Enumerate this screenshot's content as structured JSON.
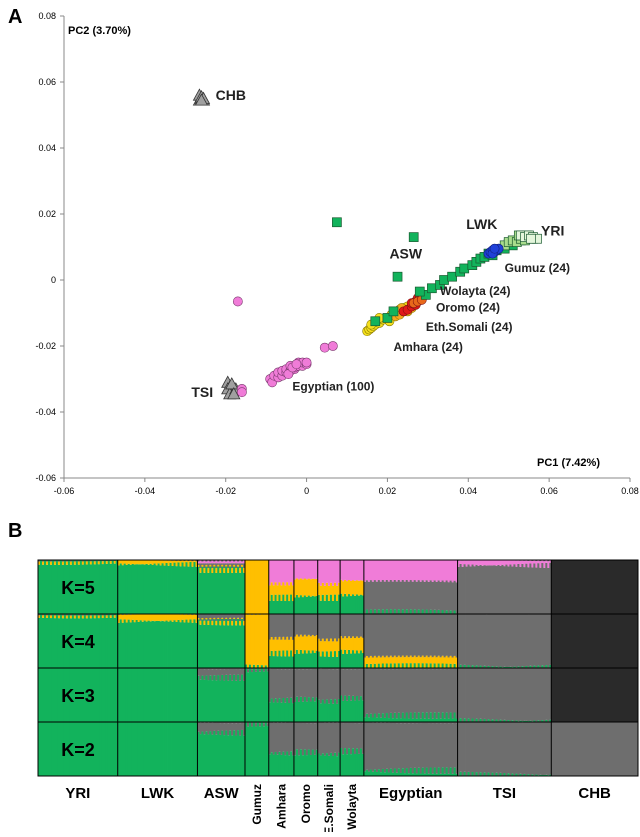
{
  "colors": {
    "green": "#12b35c",
    "lightgreen": "#a8dc8c",
    "blue": "#1f40d8",
    "red": "#e01818",
    "yellow": "#f5e01c",
    "orange": "#ffbf00",
    "pink": "#f07cd8",
    "gray": "#6e6e6e",
    "dark": "#2a2a2a",
    "triangle": "#a0a0a0"
  },
  "chart_data": [
    {
      "type": "scatter",
      "panel_label": "A",
      "xlabel": "PC1 (7.42%)",
      "ylabel": "PC2 (3.70%)",
      "xlim": [
        -0.06,
        0.08
      ],
      "ylim": [
        -0.06,
        0.08
      ],
      "xticks": [
        -0.06,
        -0.04,
        -0.02,
        0,
        0.02,
        0.04,
        0.06,
        0.08
      ],
      "yticks": [
        -0.06,
        -0.04,
        -0.02,
        0,
        0.02,
        0.04,
        0.06,
        0.08
      ],
      "xtick_labels": [
        "-0.06",
        "-0.04",
        "-0.02",
        "0",
        "0.02",
        "0.04",
        "0.06",
        "0.08"
      ],
      "ytick_labels": [
        "-0.06",
        "-0.04",
        "-0.02",
        "0",
        "0.02",
        "0.04",
        "0.06",
        "0.08"
      ],
      "grid": false,
      "series": [
        {
          "key": "chb",
          "shape": "triangle",
          "color": "#a0a0a0",
          "points": [
            [
              -0.0265,
              0.0545
            ],
            [
              -0.026,
              0.055
            ],
            [
              -0.0255,
              0.0545
            ],
            [
              -0.0265,
              0.056
            ],
            [
              -0.026,
              0.0555
            ],
            [
              -0.0255,
              0.055
            ],
            [
              -0.026,
              0.0545
            ]
          ]
        },
        {
          "key": "tsi",
          "shape": "triangle",
          "color": "#a0a0a0",
          "points": [
            [
              -0.0195,
              -0.031
            ],
            [
              -0.019,
              -0.0325
            ],
            [
              -0.0185,
              -0.034
            ],
            [
              -0.0195,
              -0.033
            ],
            [
              -0.018,
              -0.0335
            ],
            [
              -0.019,
              -0.0345
            ],
            [
              -0.0175,
              -0.033
            ],
            [
              -0.0185,
              -0.0315
            ],
            [
              -0.018,
              -0.0345
            ]
          ]
        },
        {
          "key": "egyptian",
          "shape": "circle",
          "color": "#f07cd8",
          "points": [
            [
              -0.017,
              -0.0065
            ],
            [
              -0.016,
              -0.033
            ],
            [
              -0.016,
              -0.034
            ],
            [
              -0.009,
              -0.03
            ],
            [
              -0.0085,
              -0.031
            ],
            [
              -0.008,
              -0.029
            ],
            [
              -0.007,
              -0.0295
            ],
            [
              -0.007,
              -0.028
            ],
            [
              -0.006,
              -0.029
            ],
            [
              -0.006,
              -0.0275
            ],
            [
              -0.005,
              -0.028
            ],
            [
              -0.005,
              -0.027
            ],
            [
              -0.004,
              -0.0275
            ],
            [
              -0.004,
              -0.026
            ],
            [
              -0.003,
              -0.027
            ],
            [
              -0.003,
              -0.0265
            ],
            [
              -0.002,
              -0.026
            ],
            [
              -0.002,
              -0.025
            ],
            [
              -0.001,
              -0.026
            ],
            [
              -0.001,
              -0.025
            ],
            [
              0.0,
              -0.0255
            ],
            [
              0.0,
              -0.025
            ],
            [
              -0.0045,
              -0.0285
            ],
            [
              -0.0035,
              -0.0265
            ],
            [
              -0.0025,
              -0.0255
            ],
            [
              0.0045,
              -0.0205
            ],
            [
              0.0065,
              -0.02
            ]
          ]
        },
        {
          "key": "amhara",
          "shape": "circle",
          "color": "#f5e01c",
          "points": [
            [
              0.015,
              -0.0155
            ],
            [
              0.0155,
              -0.015
            ],
            [
              0.016,
              -0.0145
            ],
            [
              0.0165,
              -0.014
            ],
            [
              0.017,
              -0.0135
            ],
            [
              0.018,
              -0.013
            ],
            [
              0.019,
              -0.012
            ],
            [
              0.02,
              -0.0115
            ],
            [
              0.0205,
              -0.0125
            ],
            [
              0.021,
              -0.0105
            ],
            [
              0.022,
              -0.0095
            ],
            [
              0.023,
              -0.009
            ],
            [
              0.024,
              -0.0085
            ],
            [
              0.025,
              -0.008
            ],
            [
              0.016,
              -0.0135
            ],
            [
              0.018,
              -0.0115
            ]
          ]
        },
        {
          "key": "oromo",
          "shape": "circle",
          "color": "#f7a81e",
          "points": [
            [
              0.022,
              -0.011
            ],
            [
              0.023,
              -0.0105
            ],
            [
              0.024,
              -0.0095
            ],
            [
              0.0245,
              -0.009
            ],
            [
              0.025,
              -0.0095
            ],
            [
              0.026,
              -0.0085
            ],
            [
              0.0235,
              -0.0085
            ]
          ]
        },
        {
          "key": "wolayta",
          "shape": "circle",
          "color": "#e01818",
          "points": [
            [
              0.024,
              -0.0095
            ],
            [
              0.025,
              -0.009
            ],
            [
              0.026,
              -0.008
            ],
            [
              0.027,
              -0.0065
            ],
            [
              0.0275,
              -0.0055
            ],
            [
              0.028,
              -0.005
            ],
            [
              0.026,
              -0.007
            ],
            [
              0.027,
              -0.0075
            ]
          ]
        },
        {
          "key": "somali",
          "shape": "circle",
          "color": "#e8681a",
          "points": [
            [
              0.0265,
              -0.007
            ],
            [
              0.0275,
              -0.0065
            ],
            [
              0.0285,
              -0.006
            ]
          ]
        },
        {
          "key": "asw",
          "shape": "square",
          "color": "#12b35c",
          "points": [
            [
              0.0075,
              0.0175
            ],
            [
              0.0265,
              0.013
            ],
            [
              0.0225,
              0.001
            ],
            [
              0.0295,
              -0.0045
            ],
            [
              0.02,
              -0.0115
            ],
            [
              0.017,
              -0.0125
            ],
            [
              0.0215,
              -0.0095
            ],
            [
              0.028,
              -0.0035
            ],
            [
              0.031,
              -0.0025
            ],
            [
              0.033,
              -0.0015
            ],
            [
              0.034,
              0.0
            ],
            [
              0.036,
              0.001
            ],
            [
              0.038,
              0.0025
            ],
            [
              0.039,
              0.0035
            ],
            [
              0.041,
              0.0045
            ],
            [
              0.042,
              0.0055
            ],
            [
              0.043,
              0.0065
            ],
            [
              0.044,
              0.007
            ],
            [
              0.045,
              0.008
            ],
            [
              0.046,
              0.0075
            ],
            [
              0.047,
              0.009
            ],
            [
              0.049,
              0.0095
            ],
            [
              0.05,
              0.011
            ],
            [
              0.051,
              0.0105
            ],
            [
              0.053,
              0.012
            ],
            [
              0.054,
              0.0125
            ],
            [
              0.055,
              0.013
            ]
          ]
        },
        {
          "key": "gumuz",
          "shape": "square",
          "color": "#a8dc8c",
          "points": [
            [
              0.049,
              0.0105
            ],
            [
              0.05,
              0.0115
            ],
            [
              0.051,
              0.012
            ],
            [
              0.052,
              0.0115
            ],
            [
              0.053,
              0.0125
            ],
            [
              0.054,
              0.012
            ],
            [
              0.055,
              0.013
            ],
            [
              0.056,
              0.0125
            ],
            [
              0.0525,
              0.0135
            ],
            [
              0.0545,
              0.0135
            ]
          ]
        },
        {
          "key": "yri",
          "shape": "square",
          "color": "#e4f6dc",
          "points": [
            [
              0.053,
              0.0135
            ],
            [
              0.054,
              0.013
            ],
            [
              0.055,
              0.0135
            ],
            [
              0.056,
              0.013
            ],
            [
              0.057,
              0.0125
            ],
            [
              0.0555,
              0.0125
            ]
          ]
        },
        {
          "key": "lwk",
          "shape": "circle",
          "color": "#1f40d8",
          "points": [
            [
              0.045,
              0.008
            ],
            [
              0.0455,
              0.0085
            ],
            [
              0.046,
              0.009
            ],
            [
              0.0465,
              0.0085
            ],
            [
              0.047,
              0.009
            ],
            [
              0.0475,
              0.0095
            ],
            [
              0.046,
              0.008
            ],
            [
              0.0465,
              0.0095
            ]
          ]
        }
      ],
      "annotations": [
        {
          "text": "CHB",
          "x": -0.0225,
          "y": 0.0545
        },
        {
          "text": "LWK",
          "x": 0.0395,
          "y": 0.0155
        },
        {
          "text": "YRI",
          "x": 0.058,
          "y": 0.0135
        },
        {
          "text": "ASW",
          "x": 0.0205,
          "y": 0.0065
        },
        {
          "text": "Gumuz (24)",
          "x": 0.049,
          "y": 0.0025
        },
        {
          "text": "Wolayta (24)",
          "x": 0.033,
          "y": -0.0045
        },
        {
          "text": "Oromo (24)",
          "x": 0.032,
          "y": -0.0095
        },
        {
          "text": "Eth.Somali (24)",
          "x": 0.0295,
          "y": -0.0155
        },
        {
          "text": "Amhara (24)",
          "x": 0.0215,
          "y": -0.0215
        },
        {
          "text": "TSI",
          "x": -0.0285,
          "y": -0.0355
        },
        {
          "text": "Egyptian (100)",
          "x": -0.0035,
          "y": -0.0335
        }
      ]
    },
    {
      "type": "bar",
      "stacked": true,
      "panel_label": "B",
      "rows": [
        "K=5",
        "K=4",
        "K=3",
        "K=2"
      ],
      "populations": [
        {
          "label": "YRI",
          "n": 57,
          "rotated": false
        },
        {
          "label": "LWK",
          "n": 57,
          "rotated": false
        },
        {
          "label": "ASW",
          "n": 34,
          "rotated": false
        },
        {
          "label": "Gumuz",
          "n": 17,
          "rotated": true
        },
        {
          "label": "Amhara",
          "n": 18,
          "rotated": true
        },
        {
          "label": "Oromo",
          "n": 17,
          "rotated": true
        },
        {
          "label": "E.Somali",
          "n": 16,
          "rotated": true
        },
        {
          "label": "Wolayta",
          "n": 17,
          "rotated": true
        },
        {
          "label": "Egyptian",
          "n": 67,
          "rotated": false
        },
        {
          "label": "TSI",
          "n": 67,
          "rotated": false
        },
        {
          "label": "CHB",
          "n": 62,
          "rotated": false
        }
      ],
      "components": [
        "green",
        "orange",
        "gray",
        "pink",
        "dark"
      ],
      "proportions": {
        "K=5": [
          {
            "green": 0.97,
            "orange": 0.03
          },
          {
            "green": 0.92,
            "orange": 0.08
          },
          {
            "green": 0.82,
            "orange": 0.06,
            "gray": 0.06,
            "pink": 0.06
          },
          {
            "orange": 1.0
          },
          {
            "green": 0.3,
            "orange": 0.26,
            "pink": 0.44
          },
          {
            "green": 0.33,
            "orange": 0.32,
            "pink": 0.35
          },
          {
            "green": 0.3,
            "orange": 0.25,
            "pink": 0.45
          },
          {
            "green": 0.35,
            "orange": 0.27,
            "pink": 0.38
          },
          {
            "green": 0.03,
            "gray": 0.57,
            "pink": 0.4
          },
          {
            "gray": 0.9,
            "pink": 0.1
          },
          {
            "dark": 1.0
          }
        ],
        "K=4": [
          {
            "green": 0.98,
            "orange": 0.02
          },
          {
            "green": 0.87,
            "orange": 0.13
          },
          {
            "green": 0.85,
            "orange": 0.05,
            "gray": 0.1
          },
          {
            "green": 0.03,
            "orange": 0.97
          },
          {
            "green": 0.27,
            "orange": 0.28,
            "gray": 0.45
          },
          {
            "green": 0.3,
            "orange": 0.3,
            "gray": 0.4
          },
          {
            "green": 0.26,
            "orange": 0.26,
            "gray": 0.48
          },
          {
            "green": 0.3,
            "orange": 0.27,
            "gray": 0.43
          },
          {
            "green": 0.03,
            "orange": 0.17,
            "gray": 0.8
          },
          {
            "green": 0.02,
            "gray": 0.98
          },
          {
            "dark": 1.0
          }
        ],
        "K=3": [
          {
            "green": 1.0
          },
          {
            "green": 1.0
          },
          {
            "green": 0.82,
            "gray": 0.18
          },
          {
            "green": 0.97,
            "gray": 0.03
          },
          {
            "green": 0.4,
            "gray": 0.6
          },
          {
            "green": 0.42,
            "gray": 0.58
          },
          {
            "green": 0.38,
            "gray": 0.62
          },
          {
            "green": 0.44,
            "gray": 0.56
          },
          {
            "green": 0.12,
            "gray": 0.88
          },
          {
            "green": 0.02,
            "gray": 0.98
          },
          {
            "dark": 1.0
          }
        ],
        "K=2": [
          {
            "green": 1.0
          },
          {
            "green": 1.0
          },
          {
            "green": 0.8,
            "gray": 0.2
          },
          {
            "green": 0.97,
            "gray": 0.03
          },
          {
            "green": 0.42,
            "gray": 0.58
          },
          {
            "green": 0.44,
            "gray": 0.56
          },
          {
            "green": 0.4,
            "gray": 0.6
          },
          {
            "green": 0.46,
            "gray": 0.54
          },
          {
            "green": 0.1,
            "gray": 0.9
          },
          {
            "green": 0.02,
            "gray": 0.98
          },
          {
            "gray": 1.0
          }
        ]
      }
    }
  ]
}
